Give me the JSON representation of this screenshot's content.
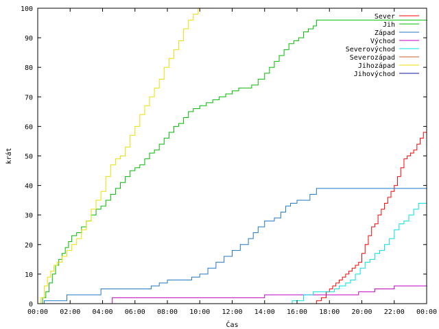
{
  "chart_data": {
    "type": "line",
    "step": true,
    "xlabel": "Čas",
    "ylabel": "krát",
    "xlim": [
      0,
      24
    ],
    "ylim": [
      0,
      100
    ],
    "x_ticks": [
      {
        "value": 0,
        "label": "00:00"
      },
      {
        "value": 2,
        "label": "02:00"
      },
      {
        "value": 4,
        "label": "04:00"
      },
      {
        "value": 6,
        "label": "06:00"
      },
      {
        "value": 8,
        "label": "08:00"
      },
      {
        "value": 10,
        "label": "10:00"
      },
      {
        "value": 12,
        "label": "12:00"
      },
      {
        "value": 14,
        "label": "14:00"
      },
      {
        "value": 16,
        "label": "16:00"
      },
      {
        "value": 18,
        "label": "18:00"
      },
      {
        "value": 20,
        "label": "20:00"
      },
      {
        "value": 22,
        "label": "22:00"
      },
      {
        "value": 24,
        "label": "00:00"
      }
    ],
    "y_ticks": [
      0,
      10,
      20,
      30,
      40,
      50,
      60,
      70,
      80,
      90,
      100
    ],
    "grid": false,
    "legend_position": "top-right",
    "series": [
      {
        "name": "Sever",
        "color": "#ff0000",
        "x": [
          16.55,
          17.2,
          17.5,
          17.8,
          18.0,
          18.2,
          18.4,
          18.6,
          18.8,
          19.0,
          19.2,
          19.4,
          19.6,
          19.8,
          20.0,
          20.2,
          20.4,
          20.6,
          20.8,
          21.0,
          21.2,
          21.4,
          21.6,
          21.8,
          22.0,
          22.2,
          22.4,
          22.6,
          22.8,
          23.0,
          23.2,
          23.4,
          23.6,
          23.8,
          24.0
        ],
        "y": [
          0,
          1,
          2,
          4,
          5,
          6,
          7,
          8,
          9,
          10,
          11,
          12,
          13,
          14,
          17,
          20,
          23,
          26,
          27,
          30,
          32,
          34,
          36,
          38,
          40,
          43,
          46,
          49,
          50,
          51,
          52,
          54,
          56,
          58,
          59
        ]
      },
      {
        "name": "Jih",
        "color": "#00bb00",
        "x": [
          0.0,
          0.3,
          0.5,
          0.7,
          0.9,
          1.1,
          1.3,
          1.5,
          1.7,
          1.9,
          2.1,
          2.4,
          2.7,
          3.0,
          3.3,
          3.6,
          3.9,
          4.2,
          4.5,
          4.8,
          5.1,
          5.4,
          5.7,
          6.0,
          6.3,
          6.6,
          6.9,
          7.2,
          7.5,
          7.8,
          8.1,
          8.4,
          8.7,
          9.0,
          9.3,
          9.6,
          10.0,
          10.4,
          10.8,
          11.2,
          11.6,
          12.0,
          12.4,
          12.8,
          13.2,
          13.6,
          14.0,
          14.3,
          14.6,
          14.9,
          15.2,
          15.5,
          15.8,
          16.1,
          16.4,
          16.7,
          17.0,
          17.2,
          17.5,
          18.0,
          20.0,
          22.0,
          24.0
        ],
        "y": [
          0,
          2,
          4,
          7,
          10,
          13,
          15,
          17,
          19,
          21,
          23,
          24,
          26,
          28,
          30,
          32,
          33,
          35,
          37,
          39,
          41,
          43,
          45,
          46,
          47,
          49,
          51,
          52,
          54,
          56,
          58,
          60,
          61,
          63,
          65,
          66,
          67,
          68,
          69,
          70,
          71,
          72,
          73,
          73,
          74,
          76,
          78,
          80,
          82,
          84,
          86,
          88,
          89,
          90,
          92,
          93,
          94,
          96,
          96,
          96,
          96,
          96,
          96
        ]
      },
      {
        "name": "Západ",
        "color": "#1f77c4",
        "x": [
          0.0,
          0.4,
          1.8,
          3.9,
          7.0,
          7.5,
          8.0,
          9.5,
          10.0,
          10.5,
          11.0,
          11.5,
          12.0,
          12.5,
          13.0,
          13.3,
          13.6,
          14.0,
          14.6,
          15.0,
          15.3,
          15.6,
          16.0,
          16.8,
          17.2,
          18.0,
          20.0,
          22.0,
          24.0
        ],
        "y": [
          0,
          1,
          3,
          5,
          6,
          7,
          8,
          9,
          10,
          12,
          14,
          16,
          18,
          20,
          22,
          24,
          26,
          28,
          29,
          31,
          33,
          34,
          35,
          37,
          39,
          39,
          39,
          39,
          39
        ]
      },
      {
        "name": "Východ",
        "color": "#c000c0",
        "x": [
          0.0,
          4.6,
          14.0,
          17.5,
          19.8,
          20.8,
          22.0,
          24.0
        ],
        "y": [
          0,
          2,
          3,
          3,
          4,
          5,
          6,
          6
        ]
      },
      {
        "name": "Severovýchod",
        "color": "#00e0e0",
        "x": [
          0.0,
          15.7,
          16.4,
          17.0,
          18.3,
          18.6,
          19.0,
          19.3,
          19.6,
          19.9,
          20.2,
          20.5,
          20.8,
          21.1,
          21.4,
          21.7,
          22.0,
          22.3,
          22.6,
          22.9,
          23.2,
          23.5,
          24.0
        ],
        "y": [
          0,
          1,
          3,
          4,
          5,
          6,
          7,
          8,
          10,
          12,
          14,
          15,
          17,
          18,
          20,
          22,
          25,
          27,
          28,
          30,
          32,
          34,
          35
        ]
      },
      {
        "name": "Severozápad",
        "color": "#c06020",
        "x": [],
        "y": []
      },
      {
        "name": "Jihozápad",
        "color": "#e8e000",
        "x": [
          0.0,
          0.2,
          0.4,
          0.6,
          0.8,
          1.0,
          1.2,
          1.5,
          1.8,
          2.1,
          2.4,
          2.7,
          3.0,
          3.3,
          3.6,
          3.9,
          4.2,
          4.5,
          4.8,
          5.1,
          5.4,
          5.7,
          6.0,
          6.3,
          6.6,
          6.9,
          7.2,
          7.5,
          7.8,
          8.1,
          8.4,
          8.7,
          9.0,
          9.3,
          9.6,
          9.9
        ],
        "y": [
          0,
          2,
          6,
          9,
          11,
          13,
          14,
          16,
          18,
          20,
          22,
          25,
          28,
          32,
          35,
          38,
          43,
          47,
          49,
          50,
          53,
          57,
          60,
          64,
          67,
          70,
          73,
          76,
          80,
          83,
          86,
          89,
          93,
          96,
          98,
          100
        ]
      },
      {
        "name": "Jihovýchod",
        "color": "#1010a0",
        "x": [],
        "y": []
      }
    ]
  }
}
